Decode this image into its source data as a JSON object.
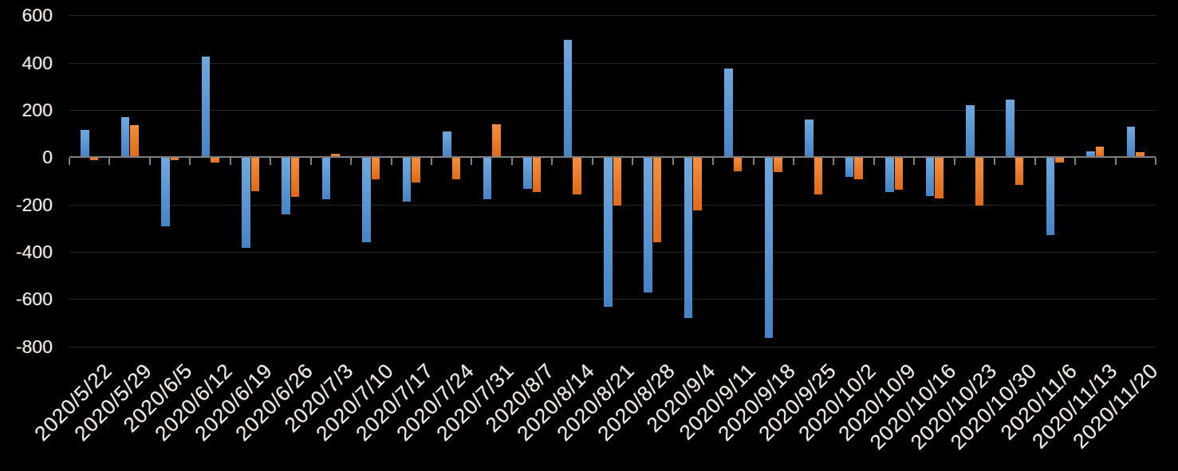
{
  "chart_data": {
    "type": "bar",
    "title": "",
    "categories": [
      "2020/5/22",
      "2020/5/29",
      "2020/6/5",
      "2020/6/12",
      "2020/6/19",
      "2020/6/26",
      "2020/7/3",
      "2020/7/10",
      "2020/7/17",
      "2020/7/24",
      "2020/7/31",
      "2020/8/7",
      "2020/8/14",
      "2020/8/21",
      "2020/8/28",
      "2020/9/4",
      "2020/9/11",
      "2020/9/18",
      "2020/9/25",
      "2020/10/2",
      "2020/10/9",
      "2020/10/16",
      "2020/10/23",
      "2020/10/30",
      "2020/11/6",
      "2020/11/13",
      "2020/11/20"
    ],
    "series": [
      {
        "name": "blue",
        "color": "#5B9BD5",
        "values": [
          115,
          170,
          -290,
          425,
          -380,
          -240,
          -175,
          -355,
          -185,
          110,
          -175,
          -130,
          495,
          -630,
          -570,
          -675,
          375,
          -760,
          160,
          -80,
          -145,
          -160,
          220,
          245,
          -325,
          25,
          130
        ]
      },
      {
        "name": "orange",
        "color": "#ED7D31",
        "values": [
          -10,
          135,
          -8,
          -20,
          -140,
          -165,
          15,
          -90,
          -105,
          -90,
          140,
          -145,
          -155,
          -200,
          -355,
          -220,
          -55,
          -60,
          -155,
          -90,
          -135,
          -170,
          -200,
          -115,
          -20,
          45,
          20
        ]
      }
    ],
    "y_axis": {
      "min": -800,
      "max": 600,
      "step": 200,
      "ticks": [
        600,
        400,
        200,
        0,
        -200,
        -400,
        -600,
        -800
      ]
    },
    "x_axis": {
      "label_rotation_deg": 45,
      "tick_marks": "outside"
    },
    "legend_position": "none",
    "grid": true,
    "colors": {
      "background": "#000000",
      "gridline": "#272727",
      "axis_line": "#7E7E7E",
      "tick": "#7E7E7E",
      "text": "#F2EFE9",
      "bar_blue_top": "#6EA9DE",
      "bar_blue_bottom": "#4684C6",
      "bar_orange_top": "#F68E3D",
      "bar_orange_bottom": "#E06A18"
    }
  }
}
